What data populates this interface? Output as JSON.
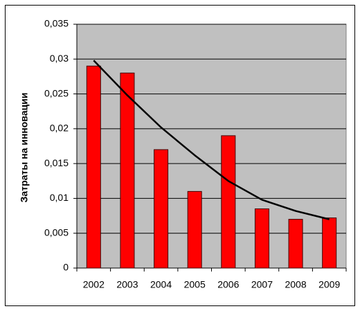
{
  "chart_data": {
    "type": "bar",
    "ylabel": "Затраты на инновации",
    "categories": [
      "2002",
      "2003",
      "2004",
      "2005",
      "2006",
      "2007",
      "2008",
      "2009"
    ],
    "values": [
      0.029,
      0.028,
      0.017,
      0.011,
      0.019,
      0.0085,
      0.007,
      0.0072
    ],
    "color": "#ff0000",
    "trendline": {
      "values": [
        0.0298,
        0.0248,
        0.0202,
        0.0162,
        0.0125,
        0.0098,
        0.0082,
        0.007
      ],
      "color": "#000000"
    },
    "ylim": [
      0,
      0.035
    ],
    "yticks": [
      0,
      {
        "value": 0.005,
        "label": "0,005"
      },
      {
        "value": 0.01,
        "label": "0,01"
      },
      {
        "value": 0.015,
        "label": "0,015"
      },
      {
        "value": 0.02,
        "label": "0,02"
      },
      {
        "value": 0.025,
        "label": "0,025"
      },
      {
        "value": 0.03,
        "label": "0,03"
      },
      {
        "value": 0.035,
        "label": "0,035"
      }
    ],
    "grid": true,
    "plot_background": "#c0c0c0"
  }
}
